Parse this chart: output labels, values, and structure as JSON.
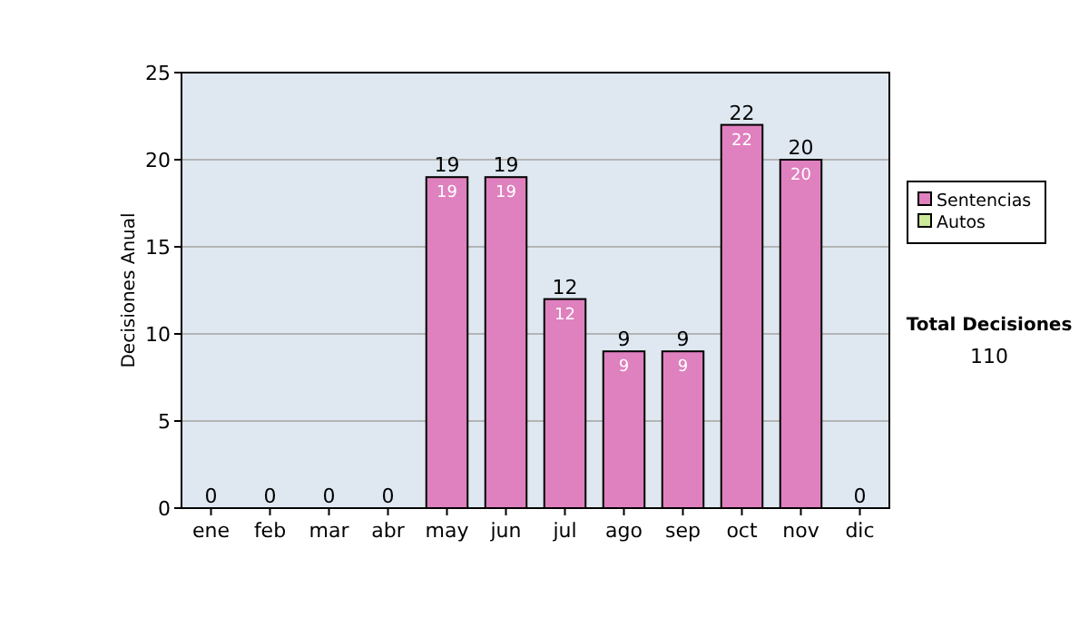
{
  "chart_data": {
    "type": "bar",
    "stacked": true,
    "ylabel": "Decisiones Anual",
    "categories": [
      "ene",
      "feb",
      "mar",
      "abr",
      "may",
      "jun",
      "jul",
      "ago",
      "sep",
      "oct",
      "nov",
      "dic"
    ],
    "series": [
      {
        "name": "Sentencias",
        "color": "#df80bf",
        "values": [
          0,
          0,
          0,
          0,
          19,
          19,
          12,
          9,
          9,
          22,
          20,
          0
        ],
        "value_labels": [
          null,
          null,
          null,
          null,
          "19",
          "19",
          "12",
          "9",
          "9",
          "22",
          "20",
          null
        ]
      },
      {
        "name": "Autos",
        "color": "#cce89a",
        "values": [
          0,
          0,
          0,
          0,
          0,
          0,
          0,
          0,
          0,
          0,
          0,
          0
        ]
      }
    ],
    "totals": [
      "0",
      "0",
      "0",
      "0",
      "19",
      "19",
      "12",
      "9",
      "9",
      "22",
      "20",
      "0"
    ],
    "ylim": [
      0,
      25
    ],
    "yticks": [
      0,
      5,
      10,
      15,
      20,
      25
    ],
    "grid": "y",
    "legend": "right",
    "annotations": [
      "Total Decisiones",
      "110"
    ]
  }
}
